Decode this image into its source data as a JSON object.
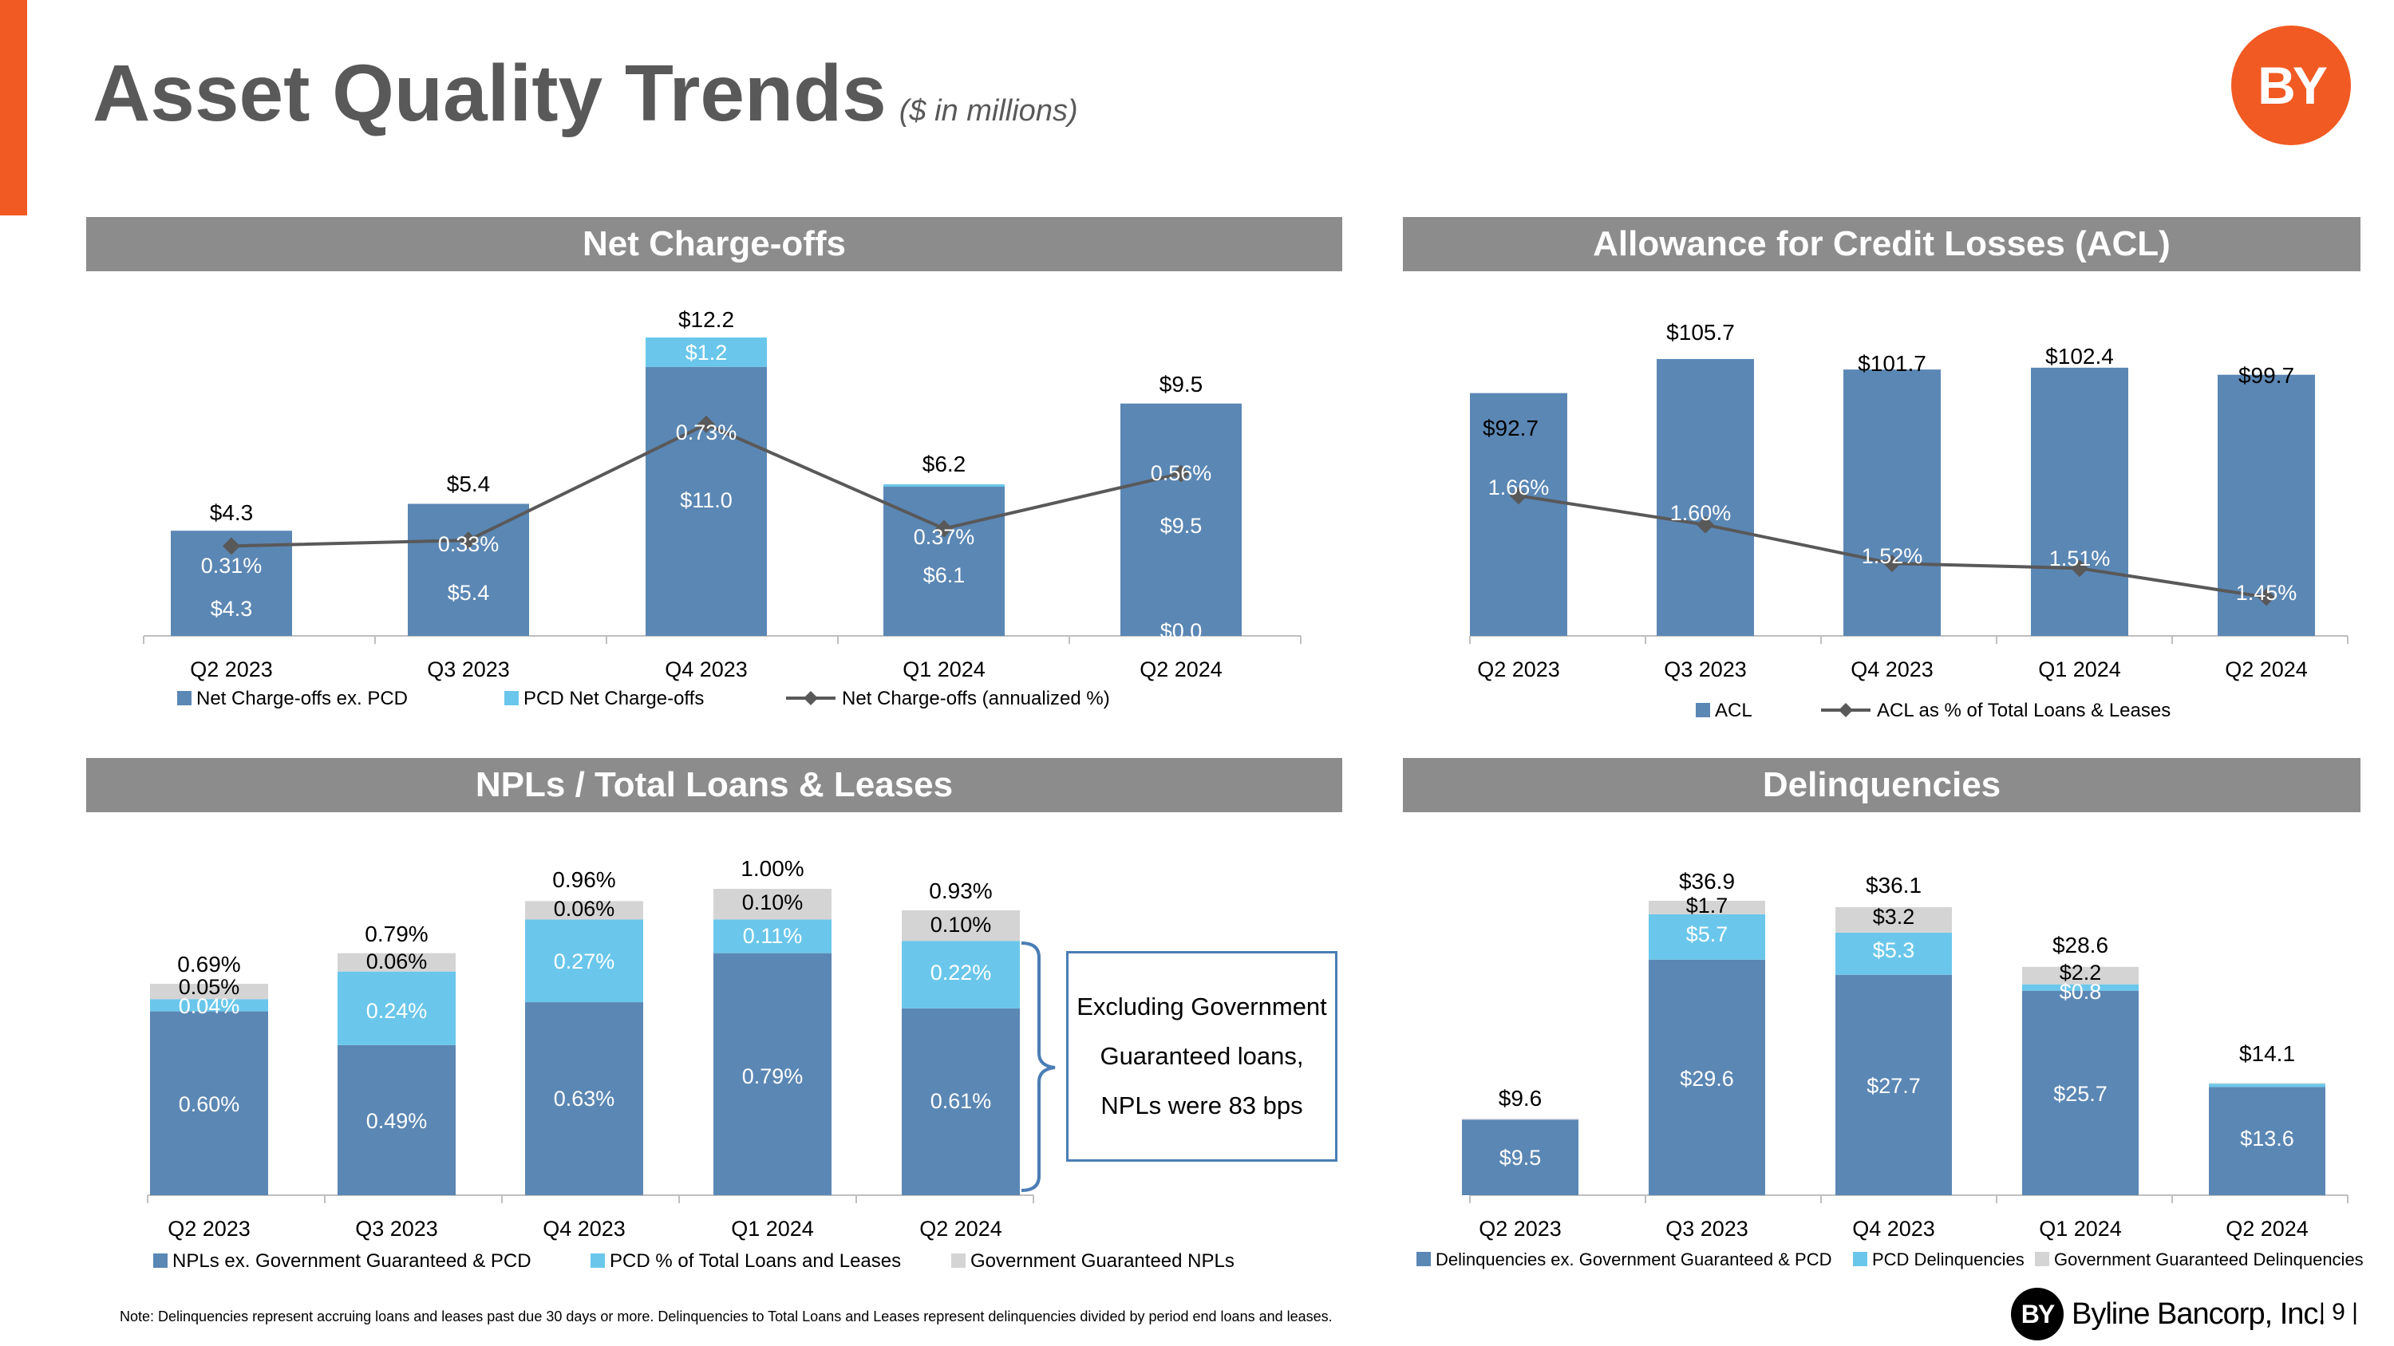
{
  "page": {
    "title": "Asset Quality Trends",
    "subtitle": "($ in millions)",
    "logo_text": "BY",
    "footer_logo_mark": "BY",
    "footer_company": "Byline Bancorp, Inc.",
    "page_number": "| 9 |",
    "note": "Note: Delinquencies represent accruing loans and leases past due 30 days or more. Delinquencies to Total Loans and Leases represent delinquencies divided by period end loans and leases.",
    "callout": "Excluding Government Guaranteed loans, NPLs were 83 bps"
  },
  "colors": {
    "accent": "#f15a22",
    "dark_blue": "#5b87b4",
    "light_blue": "#6ac7eb",
    "gray": "#d4d4d4",
    "line": "#595959",
    "header": "#8c8c8c"
  },
  "chart_data": [
    {
      "id": "nco",
      "title": "Net Charge-offs",
      "type": "bar",
      "stacked": true,
      "categories": [
        "Q2 2023",
        "Q3 2023",
        "Q4 2023",
        "Q1 2024",
        "Q2 2024"
      ],
      "ylim": [
        0,
        12.2
      ],
      "series": [
        {
          "name": "Net Charge-offs ex. PCD",
          "values": [
            4.3,
            5.4,
            11.0,
            6.1,
            9.5
          ],
          "labels": [
            "$4.3",
            "$5.4",
            "$11.0",
            "$6.1",
            "$9.5"
          ]
        },
        {
          "name": "PCD Net Charge-offs",
          "values": [
            0.0,
            0.0,
            1.2,
            0.1,
            0.0
          ],
          "labels": [
            "",
            "",
            "$1.2",
            "",
            "$0.0"
          ]
        }
      ],
      "totals": [
        "$4.3",
        "$5.4",
        "$12.2",
        "$6.2",
        "$9.5"
      ],
      "line": {
        "name": "Net Charge-offs (annualized %)",
        "values": [
          0.31,
          0.33,
          0.73,
          0.37,
          0.56
        ],
        "labels": [
          "0.31%",
          "0.33%",
          "0.73%",
          "0.37%",
          "0.56%"
        ],
        "ylim": [
          0,
          0.9
        ]
      },
      "legend": "bottom"
    },
    {
      "id": "acl",
      "title": "Allowance for Credit Losses (ACL)",
      "type": "bar",
      "categories": [
        "Q2 2023",
        "Q3 2023",
        "Q4 2023",
        "Q1 2024",
        "Q2 2024"
      ],
      "ylim": [
        0,
        105.7
      ],
      "series": [
        {
          "name": "ACL",
          "values": [
            92.7,
            105.7,
            101.7,
            102.4,
            99.7
          ]
        }
      ],
      "totals": [
        "$92.7",
        "$105.7",
        "$101.7",
        "$102.4",
        "$99.7"
      ],
      "line": {
        "name": "ACL as % of Total Loans & Leases",
        "values": [
          1.66,
          1.6,
          1.52,
          1.51,
          1.45
        ],
        "labels": [
          "1.66%",
          "1.60%",
          "1.52%",
          "1.51%",
          "1.45%"
        ],
        "ylim": [
          1.2,
          1.72
        ]
      },
      "legend": "bottom"
    },
    {
      "id": "npl",
      "title": "NPLs / Total Loans & Leases",
      "type": "bar",
      "stacked": true,
      "categories": [
        "Q2 2023",
        "Q3 2023",
        "Q4 2023",
        "Q1 2024",
        "Q2 2024"
      ],
      "ylim": [
        0,
        1.0
      ],
      "series": [
        {
          "name": "NPLs ex. Government Guaranteed & PCD",
          "values": [
            0.6,
            0.49,
            0.63,
            0.79,
            0.61
          ],
          "labels": [
            "0.60%",
            "0.49%",
            "0.63%",
            "0.79%",
            "0.61%"
          ]
        },
        {
          "name": "PCD % of Total Loans and Leases",
          "values": [
            0.04,
            0.24,
            0.27,
            0.11,
            0.22
          ],
          "labels": [
            "0.04%",
            "0.24%",
            "0.27%",
            "0.11%",
            "0.22%"
          ]
        },
        {
          "name": "Government Guaranteed NPLs",
          "values": [
            0.05,
            0.06,
            0.06,
            0.1,
            0.1
          ],
          "labels": [
            "0.05%",
            "0.06%",
            "0.06%",
            "0.10%",
            "0.10%"
          ]
        }
      ],
      "totals": [
        "0.69%",
        "0.79%",
        "0.96%",
        "1.00%",
        "0.93%"
      ],
      "legend": "bottom"
    },
    {
      "id": "dlq",
      "title": "Delinquencies",
      "type": "bar",
      "stacked": true,
      "categories": [
        "Q2 2023",
        "Q3 2023",
        "Q4 2023",
        "Q1 2024",
        "Q2 2024"
      ],
      "ylim": [
        0,
        36.9
      ],
      "series": [
        {
          "name": "Delinquencies ex. Government Guaranteed & PCD",
          "values": [
            9.5,
            29.6,
            27.7,
            25.7,
            13.6
          ],
          "labels": [
            "$9.5",
            "$29.6",
            "$27.7",
            "$25.7",
            "$13.6"
          ]
        },
        {
          "name": "PCD Delinquencies",
          "values": [
            0.0,
            5.7,
            5.3,
            0.8,
            0.4
          ],
          "labels": [
            "",
            "$5.7",
            "$5.3",
            "$0.8",
            ""
          ]
        },
        {
          "name": "Government Guaranteed Delinquencies",
          "values": [
            0.1,
            1.7,
            3.2,
            2.2,
            0.1
          ],
          "labels": [
            "",
            "$1.7",
            "$3.2",
            "$2.2",
            ""
          ]
        }
      ],
      "totals": [
        "$9.6",
        "$36.9",
        "$36.1",
        "$28.6",
        "$14.1"
      ],
      "legend": "bottom"
    }
  ]
}
